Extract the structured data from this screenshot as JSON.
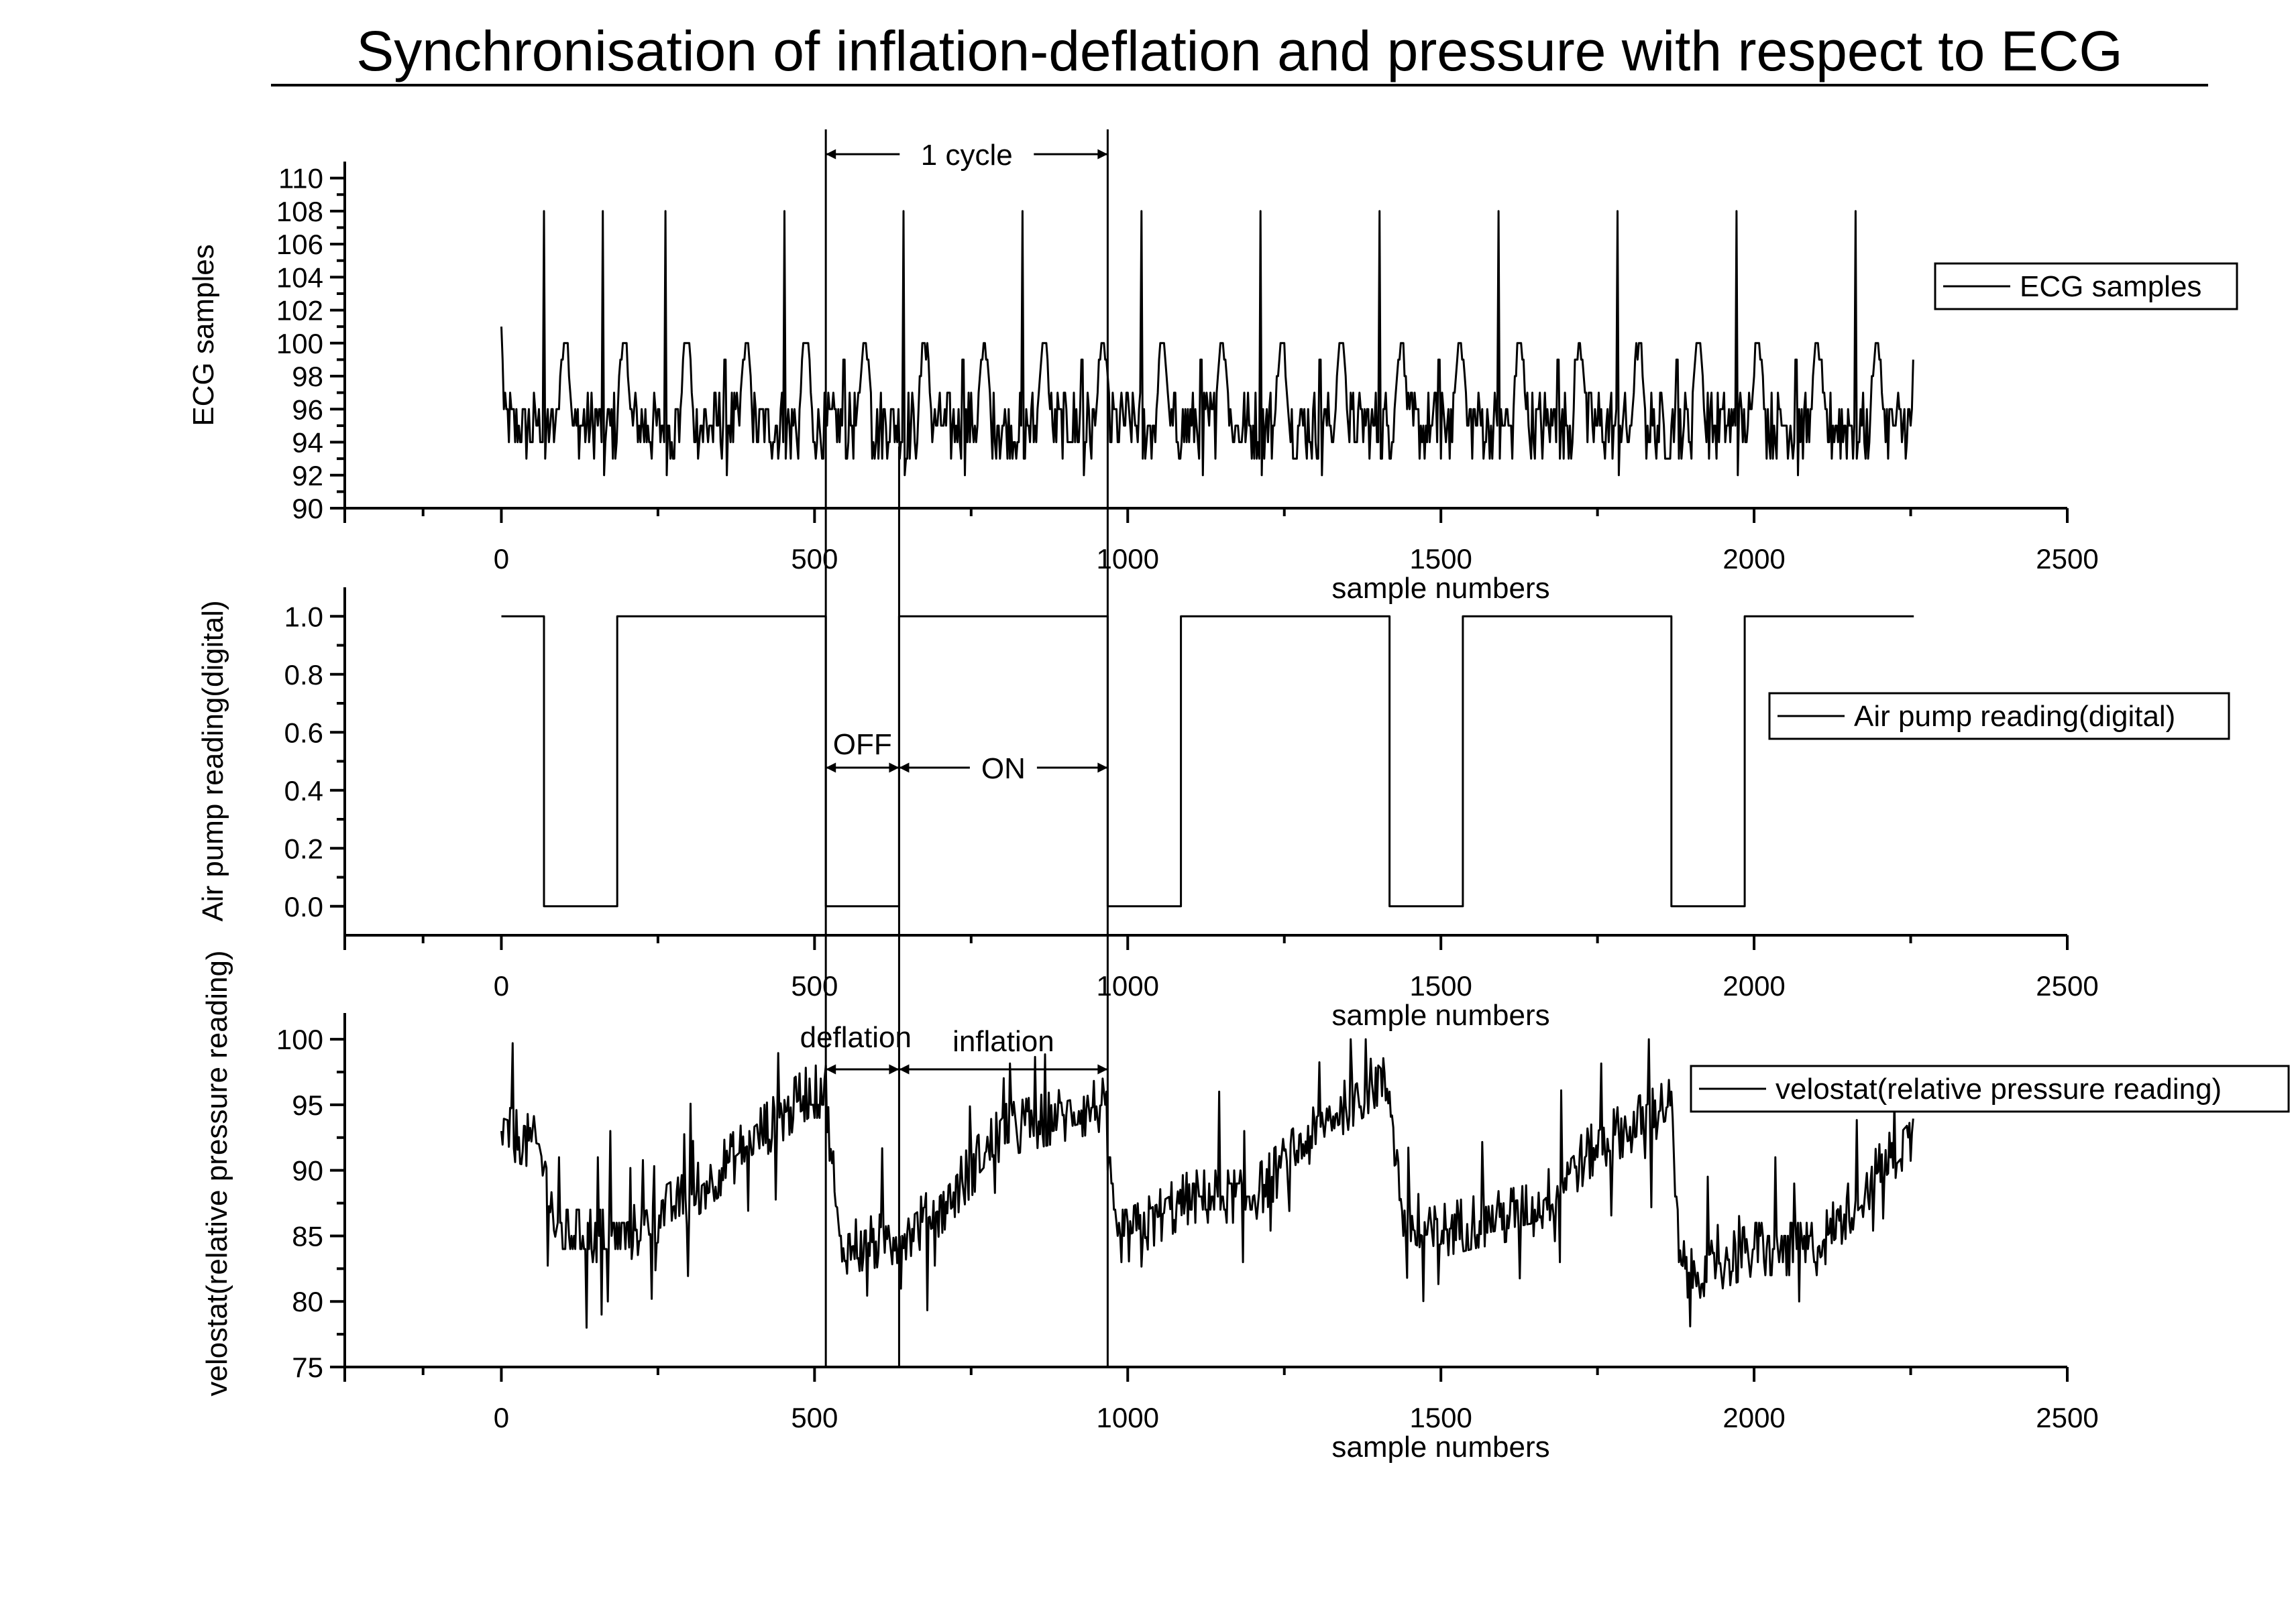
{
  "title": "Synchronisation of inflation-deflation and pressure with respect to ECG",
  "chart_data": [
    {
      "id": "ecg",
      "type": "line",
      "ylabel": "ECG samples",
      "xlabel": "sample numbers",
      "xlim": [
        -250,
        2500
      ],
      "ylim": [
        90,
        111
      ],
      "xticks": [
        0,
        500,
        1000,
        1500,
        2000,
        2500
      ],
      "yticks": [
        90,
        92,
        94,
        96,
        98,
        100,
        102,
        104,
        106,
        108,
        110
      ],
      "legend": "ECG samples",
      "legend_position": "right",
      "series": {
        "name": "ECG samples",
        "generator": "ecg",
        "x_range": [
          0,
          2255
        ],
        "baseline": 95,
        "noise_range": [
          93,
          97
        ],
        "peak_value": 108,
        "secondary_peak_value": 100,
        "r_peak_x": [
          68,
          162,
          262,
          357,
          452,
          547,
          642,
          737,
          832,
          927,
          1022,
          1117,
          1212,
          1307,
          1402,
          1497,
          1592,
          1687,
          1782,
          1877,
          1972,
          2067,
          2162,
          2255
        ]
      }
    },
    {
      "id": "pump",
      "type": "line",
      "ylabel": "Air pump reading(digital)",
      "xlabel": "sample numbers",
      "xlim": [
        -250,
        2500
      ],
      "ylim": [
        -0.1,
        1.1
      ],
      "xticks": [
        0,
        500,
        1000,
        1500,
        2000,
        2500
      ],
      "yticks": [
        0.0,
        0.2,
        0.4,
        0.6,
        0.8,
        1.0
      ],
      "ytick_labels": [
        "0.0",
        "0.2",
        "0.4",
        "0.6",
        "0.8",
        "1.0"
      ],
      "legend": "Air pump reading(digital)",
      "legend_position": "right",
      "series": {
        "name": "Air pump reading(digital)",
        "x": [
          0,
          68,
          68,
          185,
          185,
          518,
          518,
          635,
          635,
          968,
          968,
          1085,
          1085,
          1418,
          1418,
          1535,
          1535,
          1868,
          1868,
          1985,
          1985,
          2255
        ],
        "y": [
          1,
          1,
          0,
          0,
          1,
          1,
          0,
          0,
          1,
          1,
          0,
          0,
          1,
          1,
          0,
          0,
          1,
          1,
          0,
          0,
          1,
          1
        ]
      }
    },
    {
      "id": "velostat",
      "type": "line",
      "ylabel": "velostat(relative pressure reading)",
      "xlabel": "sample numbers",
      "xlim": [
        -250,
        2500
      ],
      "ylim": [
        75,
        102
      ],
      "xticks": [
        0,
        500,
        1000,
        1500,
        2000,
        2500
      ],
      "yticks": [
        75,
        80,
        85,
        90,
        95,
        100
      ],
      "legend": "velostat(relative pressure reading)",
      "legend_position": "right",
      "series": {
        "name": "velostat(relative pressure reading)",
        "generator": "pressure",
        "x_range": [
          0,
          2255
        ],
        "envelope_x": [
          0,
          60,
          90,
          200,
          300,
          420,
          490,
          518,
          540,
          640,
          700,
          800,
          960,
          980,
          1000,
          1100,
          1200,
          1300,
          1400,
          1418,
          1440,
          1470,
          1550,
          1650,
          1750,
          1868,
          1880,
          1900,
          2000,
          2100,
          2200,
          2255
        ],
        "envelope_y": [
          93,
          92,
          85,
          85,
          88,
          93,
          96,
          96,
          84,
          85,
          87,
          93,
          95,
          85,
          85,
          88,
          88,
          93,
          97,
          96,
          86,
          85,
          86,
          87,
          92,
          95,
          83,
          82,
          84,
          84,
          90,
          93
        ]
      }
    }
  ],
  "annotations": {
    "cycle": "1 cycle",
    "off": "OFF",
    "on": "ON",
    "deflation": "deflation",
    "inflation": "inflation"
  },
  "markers_x": [
    518,
    635,
    968
  ]
}
